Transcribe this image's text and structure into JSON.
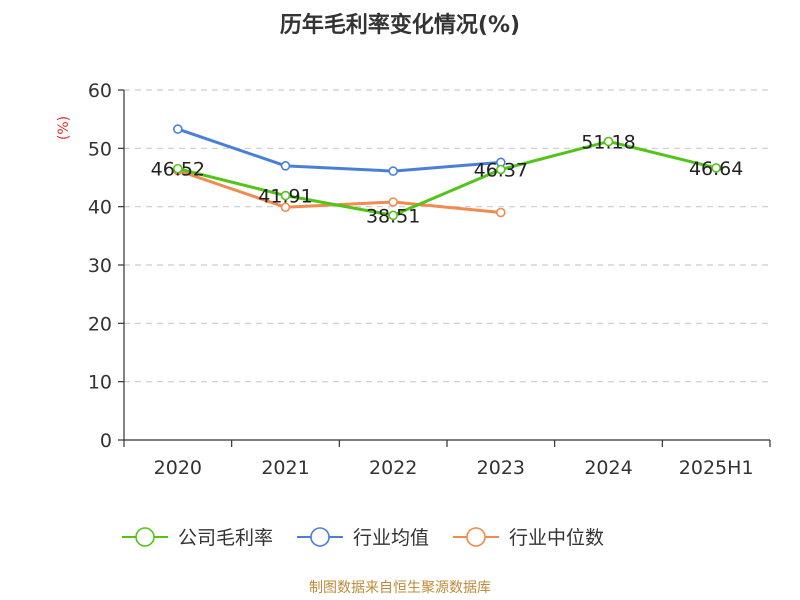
{
  "chart_data": {
    "type": "line",
    "title": "历年毛利率变化情况(%)",
    "ylabel": "(%)",
    "ylim": [
      0,
      60
    ],
    "yticks": [
      "0",
      "10",
      "20",
      "30",
      "40",
      "50",
      "60"
    ],
    "categories": [
      "2020",
      "2021",
      "2022",
      "2023",
      "2024",
      "2025H1"
    ],
    "grid": true,
    "legend_position": "bottom",
    "series": [
      {
        "name": "公司毛利率",
        "color": "#52c41a",
        "values": [
          46.52,
          41.91,
          38.51,
          46.37,
          51.18,
          46.64
        ],
        "labels": [
          "46.52",
          "41.91",
          "38.51",
          "46.37",
          "51.18",
          "46.64"
        ]
      },
      {
        "name": "行业均值",
        "color": "#4a7fd9",
        "values": [
          53.3,
          47.0,
          46.1,
          47.6,
          null,
          null
        ]
      },
      {
        "name": "行业中位数",
        "color": "#f08a4f",
        "values": [
          46.2,
          39.9,
          40.8,
          39.0,
          null,
          null
        ]
      }
    ],
    "source": "制图数据来自恒生聚源数据库"
  }
}
